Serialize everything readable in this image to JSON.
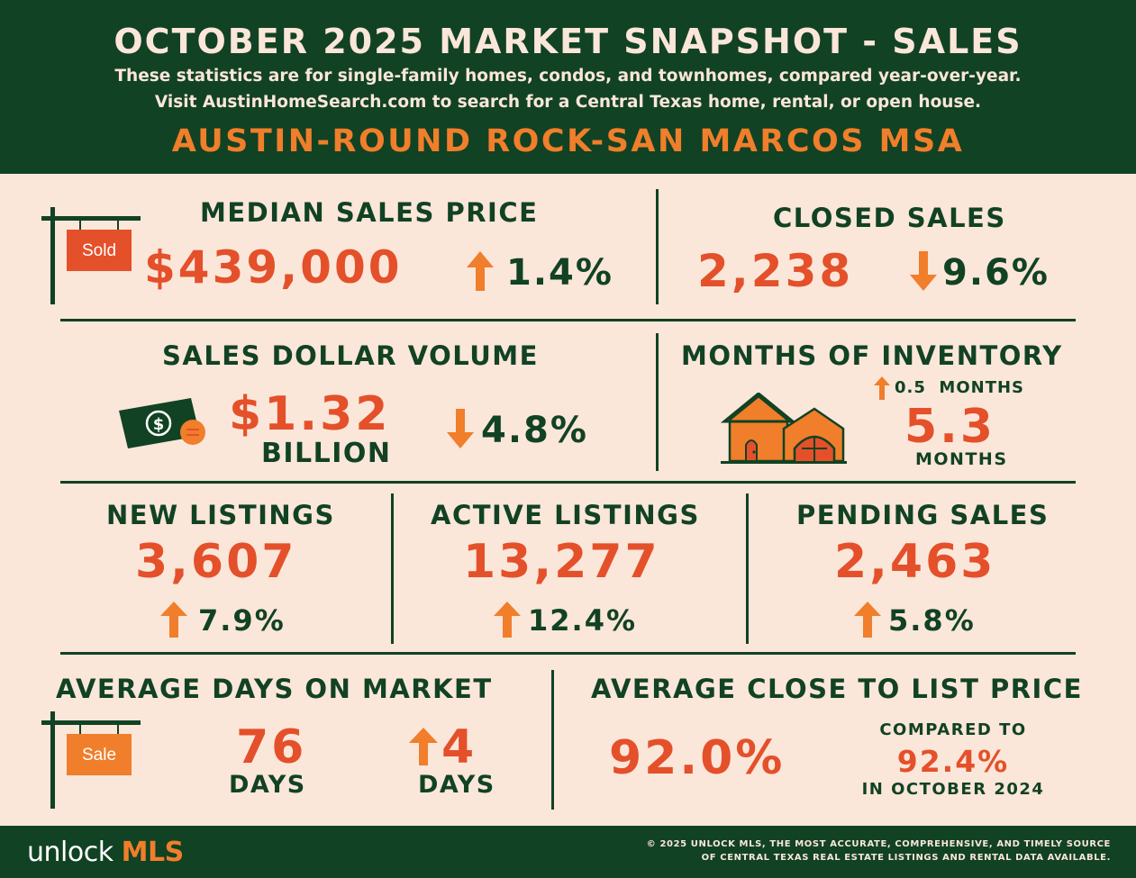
{
  "header": {
    "title": "OCTOBER 2025 MARKET SNAPSHOT - SALES",
    "subtitle_line1": "These statistics are for single-family homes, condos, and townhomes, compared year-over-year.",
    "subtitle_line2": "Visit AustinHomeSearch.com to search for a Central Texas home, rental, or open house.",
    "region": "AUSTIN-ROUND ROCK-SAN MARCOS MSA"
  },
  "median_sales_price": {
    "label": "MEDIAN SALES PRICE",
    "value": "$439,000",
    "change": "1.4%",
    "direction": "up",
    "sign_text": "Sold"
  },
  "closed_sales": {
    "label": "CLOSED SALES",
    "value": "2,238",
    "change": "9.6%",
    "direction": "down"
  },
  "sales_dollar_volume": {
    "label": "SALES DOLLAR VOLUME",
    "value": "$1.32",
    "unit": "BILLION",
    "change": "4.8%",
    "direction": "down"
  },
  "months_of_inventory": {
    "label": "MONTHS OF INVENTORY",
    "change": "0.5  MONTHS",
    "direction": "up",
    "value": "5.3",
    "unit": "MONTHS"
  },
  "new_listings": {
    "label": "NEW LISTINGS",
    "value": "3,607",
    "change": "7.9%",
    "direction": "up"
  },
  "active_listings": {
    "label": "ACTIVE LISTINGS",
    "value": "13,277",
    "change": "12.4%",
    "direction": "up"
  },
  "pending_sales": {
    "label": "PENDING SALES",
    "value": "2,463",
    "change": "5.8%",
    "direction": "up"
  },
  "avg_days_on_market": {
    "label": "AVERAGE DAYS ON MARKET",
    "value": "76",
    "unit": "DAYS",
    "change": "4",
    "change_unit": "DAYS",
    "direction": "up",
    "sign_text": "Sale"
  },
  "avg_close_to_list": {
    "label": "AVERAGE CLOSE TO LIST PRICE",
    "value": "92.0%",
    "compared_label": "COMPARED TO",
    "compared_value": "92.4%",
    "compared_period": "IN OCTOBER 2024"
  },
  "footer": {
    "logo_part1": "unlock ",
    "logo_part2": "MLS",
    "copyright_line1": "© 2025 UNLOCK MLS, THE MOST ACCURATE, COMPREHENSIVE, AND TIMELY SOURCE",
    "copyright_line2": "OF CENTRAL TEXAS REAL ESTATE LISTINGS AND RENTAL DATA AVAILABLE."
  },
  "colors": {
    "dark_green": "#114223",
    "cream": "#fbe6da",
    "orange": "#f07e2b",
    "red_orange": "#e4502a"
  }
}
